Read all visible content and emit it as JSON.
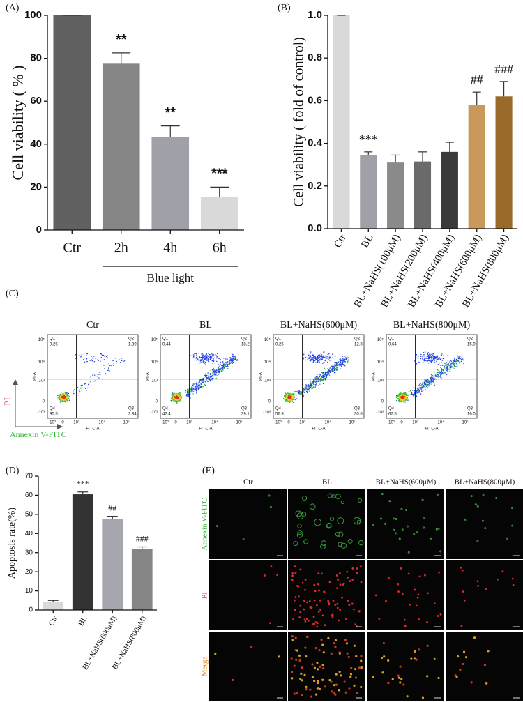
{
  "chart_data": [
    {
      "type": "bar",
      "panel_label": "(A)",
      "y_label": "Cell viability ( % )",
      "categories": [
        "Ctr",
        "2h",
        "4h",
        "6h"
      ],
      "values": [
        100,
        77.5,
        43.5,
        15.5
      ],
      "errors": [
        0,
        5,
        5,
        4.5
      ],
      "annotations": [
        null,
        "**",
        "**",
        "***"
      ],
      "colors": [
        "#616161",
        "#858585",
        "#a0a0a8",
        "#d9d9d9"
      ],
      "ylim": [
        0,
        100
      ],
      "yticks": [
        0,
        20,
        40,
        60,
        80,
        100
      ],
      "group_label": "Blue light"
    },
    {
      "type": "bar",
      "panel_label": "(B)",
      "y_label": "Cell viability ( fold of control)",
      "categories": [
        "Ctr",
        "BL",
        "BL+NaHS(100μM)",
        "BL+NaHS(200μM)",
        "BL+NaHS(400μM)",
        "BL+NaHS(600μM)",
        "BL+NaHS(800μM)"
      ],
      "values": [
        1.0,
        0.345,
        0.31,
        0.315,
        0.36,
        0.58,
        0.62
      ],
      "errors": [
        0,
        0.015,
        0.035,
        0.045,
        0.045,
        0.06,
        0.07
      ],
      "annotations": [
        null,
        "***",
        null,
        null,
        null,
        "##",
        "###"
      ],
      "colors": [
        "#d9d9d9",
        "#a0a0a8",
        "#8a8a8a",
        "#6a6a6a",
        "#3a3a3a",
        "#c8995a",
        "#9a6a2a"
      ],
      "ylim": [
        0,
        1
      ],
      "yticks": [
        {
          "value": 0,
          "label": "0.0"
        },
        0.2,
        0.4,
        0.6,
        0.8,
        {
          "value": 1,
          "label": "1.0"
        }
      ]
    },
    {
      "type": "bar",
      "panel_label": "(D)",
      "y_label": "Apoptosis rate(%)",
      "categories": [
        "Ctr",
        "BL",
        "BL+NaHS(600μM)",
        "BL+NaHS(800μM)"
      ],
      "values": [
        4.2,
        60.5,
        47.5,
        31.8
      ],
      "errors": [
        0.8,
        1.2,
        1.5,
        1.2
      ],
      "annotations": [
        null,
        "***",
        "##",
        "###"
      ],
      "colors": [
        "#d9d9d9",
        "#333333",
        "#a6a6ae",
        "#858585"
      ],
      "ylim": [
        0,
        70
      ],
      "yticks": [
        0,
        10,
        20,
        30,
        40,
        50,
        60,
        70
      ]
    }
  ],
  "flow_cytometry": {
    "panel_label": "(C)",
    "y_label": "PI",
    "x_label": "Annexin V-FITC",
    "y_axis_title": "PI-A",
    "x_axis_title": "FITC-A",
    "y_ticks": [
      "10⁵",
      "10⁴",
      "10³",
      "0",
      "-10³"
    ],
    "x_ticks": [
      "-10³",
      "0",
      "10³",
      "10⁴",
      "10⁵"
    ],
    "plots": [
      {
        "title": "Ctr",
        "quadrants": [
          {
            "name": "Q1",
            "value": "0.25"
          },
          {
            "name": "Q2",
            "value": "1.39"
          },
          {
            "name": "Q3",
            "value": "2.84"
          },
          {
            "name": "Q4",
            "value": "95.5"
          }
        ]
      },
      {
        "title": "BL",
        "quadrants": [
          {
            "name": "Q1",
            "value": "0.44"
          },
          {
            "name": "Q2",
            "value": "18.2"
          },
          {
            "name": "Q3",
            "value": "39.1"
          },
          {
            "name": "Q4",
            "value": "42.4"
          }
        ]
      },
      {
        "title": "BL+NaHS(600μM)",
        "quadrants": [
          {
            "name": "Q1",
            "value": "0.25"
          },
          {
            "name": "Q2",
            "value": "12.3"
          },
          {
            "name": "Q3",
            "value": "30.6"
          },
          {
            "name": "Q4",
            "value": "56.9"
          }
        ]
      },
      {
        "title": "BL+NaHS(800μM)",
        "quadrants": [
          {
            "name": "Q1",
            "value": "0.64"
          },
          {
            "name": "Q2",
            "value": "15.9"
          },
          {
            "name": "Q3",
            "value": "16.0"
          },
          {
            "name": "Q4",
            "value": "67.5"
          }
        ]
      }
    ]
  },
  "fluorescence": {
    "panel_label": "(E)",
    "columns": [
      "Ctr",
      "BL",
      "BL+NaHS(600μM)",
      "BL+NaHS(800μM)"
    ],
    "rows": [
      "Annexin V-FITC",
      "PI",
      "Merge"
    ]
  }
}
